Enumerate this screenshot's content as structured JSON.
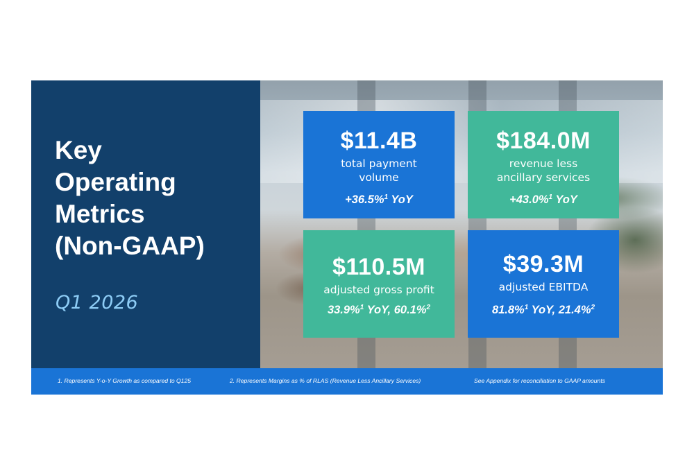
{
  "slide": {
    "title": "Key\nOperating\nMetrics\n(Non-GAAP)",
    "period": "Q1 2026"
  },
  "colors": {
    "navy_panel": "#12406b",
    "blue_card": "#1a74d6",
    "teal_card": "#41b89a",
    "period_text": "#8ecdf6",
    "footer_bar": "#1a74d6"
  },
  "metrics": [
    {
      "value": "$11.4B",
      "label": "total payment\nvolume",
      "growth_parts": [
        "+36.5%",
        "1",
        " YoY",
        "",
        ""
      ],
      "color": "blue"
    },
    {
      "value": "$184.0M",
      "label": "revenue less\nancillary services",
      "growth_parts": [
        "+43.0%",
        "1",
        " YoY",
        "",
        ""
      ],
      "color": "teal"
    },
    {
      "value": "$110.5M",
      "label": "adjusted gross profit",
      "growth_parts": [
        "33.9%",
        "1",
        " YoY, 60.1%",
        "2",
        ""
      ],
      "color": "teal"
    },
    {
      "value": "$39.3M",
      "label": "adjusted EBITDA",
      "growth_parts": [
        "81.8%",
        "1",
        " YoY, 21.4%",
        "2",
        ""
      ],
      "color": "blue"
    }
  ],
  "footnotes": {
    "note1": "1. Represents Y-o-Y Growth as compared to Q125",
    "note2": "2. Represents Margins as % of RLAS (Revenue Less Ancillary Services)",
    "appendix": "See Appendix for reconciliation to GAAP amounts"
  }
}
